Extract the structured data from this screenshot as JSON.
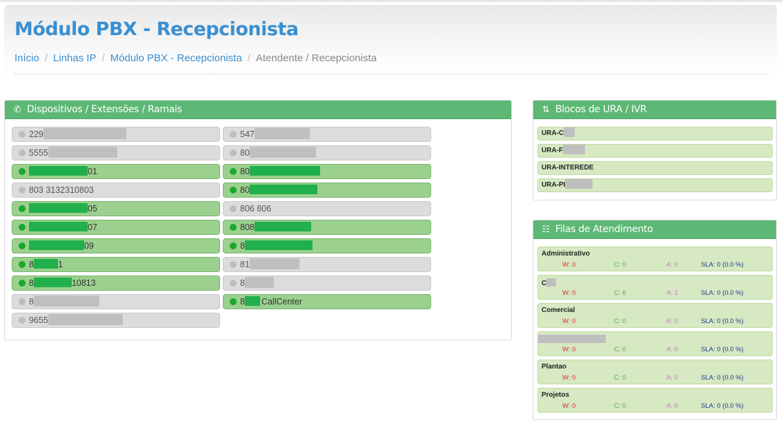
{
  "page": {
    "title": "Módulo PBX - Recepcionista",
    "breadcrumb": [
      "Início",
      "Linhas IP",
      "Módulo PBX - Recepcionista",
      "Atendente / Recepcionista"
    ],
    "separator": "/"
  },
  "colors": {
    "accent_blue": "#3a8fd1",
    "panel_green": "#5cb874",
    "online_green": "#9bd08f",
    "offline_gray": "#dcdcdc",
    "queue_green": "#d6e9c3"
  },
  "devices_panel": {
    "title": "Dispositivos / Extensões / Ramais",
    "icon": "phone-icon",
    "col1": [
      {
        "prefix": "229",
        "suffix": "",
        "status": "offline"
      },
      {
        "prefix": "5555",
        "suffix": "",
        "status": "offline"
      },
      {
        "prefix": "",
        "suffix": "01",
        "status": "online"
      },
      {
        "prefix": "803 3132310803",
        "suffix": "",
        "status": "offline"
      },
      {
        "prefix": "",
        "suffix": "05",
        "status": "online"
      },
      {
        "prefix": "",
        "suffix": "07",
        "status": "online"
      },
      {
        "prefix": "",
        "suffix": "09",
        "status": "online"
      },
      {
        "prefix": "8",
        "suffix": "1",
        "status": "online"
      },
      {
        "prefix": "8",
        "suffix": "10813",
        "status": "online"
      },
      {
        "prefix": "8",
        "suffix": "",
        "status": "offline"
      },
      {
        "prefix": "9655",
        "suffix": "",
        "status": "offline"
      }
    ],
    "col2": [
      {
        "prefix": "547",
        "suffix": "",
        "status": "offline"
      },
      {
        "prefix": "80",
        "suffix": "",
        "status": "offline"
      },
      {
        "prefix": "80",
        "suffix": "",
        "status": "online"
      },
      {
        "prefix": "80",
        "suffix": "",
        "status": "online"
      },
      {
        "prefix": "806 806",
        "suffix": "",
        "status": "offline"
      },
      {
        "prefix": "808",
        "suffix": "",
        "status": "online"
      },
      {
        "prefix": "8",
        "suffix": "",
        "status": "online"
      },
      {
        "prefix": "81",
        "suffix": "",
        "status": "offline"
      },
      {
        "prefix": "8",
        "suffix": "",
        "status": "offline"
      },
      {
        "prefix": "8",
        "suffix": "CallCenter",
        "status": "online"
      }
    ]
  },
  "ura_panel": {
    "title": "Blocos de URA / IVR",
    "icon": "sort-icon",
    "items": [
      "URA-C",
      "URA-F",
      "URA-INTEREDE",
      "URA-PI"
    ]
  },
  "queues_panel": {
    "title": "Filas de Atendimento",
    "icon": "sitemap-icon",
    "items": [
      {
        "name": "Administrativo",
        "w": "W: 0",
        "c": "C: 0",
        "a": "A: 0",
        "sla": "SLA: 0 (0.0 %)"
      },
      {
        "name": "C",
        "w": "W: 0",
        "c": "C: 6",
        "a": "A: 1",
        "sla": "SLA: 0 (0.0 %)"
      },
      {
        "name": "Comercial",
        "w": "W: 0",
        "c": "C: 0",
        "a": "A: 0",
        "sla": "SLA: 0 (0.0 %)"
      },
      {
        "name": "",
        "w": "W: 0",
        "c": "C: 0",
        "a": "A: 0",
        "sla": "SLA: 0 (0.0 %)"
      },
      {
        "name": "Plantao",
        "w": "W: 0",
        "c": "C: 0",
        "a": "A: 0",
        "sla": "SLA: 0 (0.0 %)"
      },
      {
        "name": "Projetos",
        "w": "W: 0",
        "c": "C: 0",
        "a": "A: 0",
        "sla": "SLA: 0 (0.0 %)"
      }
    ]
  }
}
